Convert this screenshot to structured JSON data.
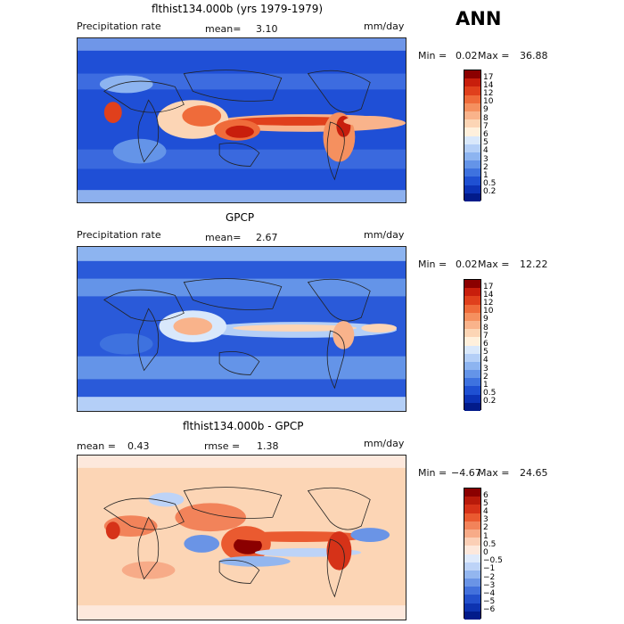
{
  "season": "ANN",
  "panels": [
    {
      "title": "flthist134.000b (yrs 1979-1979)",
      "left_label": "Precipitation rate",
      "stat1_label": "mean=",
      "stat1_value": "3.10",
      "stat2_label": "",
      "stat2_value": "",
      "units": "mm/day",
      "min_label": "Min =",
      "min_value": "0.02",
      "max_label": "Max =",
      "max_value": "36.88",
      "colorbar": {
        "labels": [
          "17",
          "14",
          "12",
          "10",
          "9",
          "8",
          "7",
          "6",
          "5",
          "4",
          "3",
          "2",
          "1",
          "0.5",
          "0.2"
        ],
        "colors": [
          "#8b0000",
          "#c81e0c",
          "#e0401c",
          "#ef6b3a",
          "#f5905f",
          "#f9b38b",
          "#fcd5b5",
          "#fff0dc",
          "#d9e8fb",
          "#b4cff7",
          "#8db4f0",
          "#6494e8",
          "#3e72df",
          "#1f50d2",
          "#0c33b6",
          "#021b8a"
        ]
      }
    },
    {
      "title": "GPCP",
      "left_label": "Precipitation rate",
      "stat1_label": "mean=",
      "stat1_value": "2.67",
      "stat2_label": "",
      "stat2_value": "",
      "units": "mm/day",
      "min_label": "Min =",
      "min_value": "0.02",
      "max_label": "Max =",
      "max_value": "12.22",
      "colorbar": {
        "labels": [
          "17",
          "14",
          "12",
          "10",
          "9",
          "8",
          "7",
          "6",
          "5",
          "4",
          "3",
          "2",
          "1",
          "0.5",
          "0.2"
        ],
        "colors": [
          "#8b0000",
          "#c81e0c",
          "#e0401c",
          "#ef6b3a",
          "#f5905f",
          "#f9b38b",
          "#fcd5b5",
          "#fff0dc",
          "#d9e8fb",
          "#b4cff7",
          "#8db4f0",
          "#6494e8",
          "#3e72df",
          "#1f50d2",
          "#0c33b6",
          "#021b8a"
        ]
      }
    },
    {
      "title": "flthist134.000b - GPCP",
      "left_label": "",
      "stat1_label": "mean =",
      "stat1_value": "0.43",
      "stat2_label": "rmse =",
      "stat2_value": "1.38",
      "units": "mm/day",
      "min_label": "Min =",
      "min_value": "−4.67",
      "max_label": "Max =",
      "max_value": "24.65",
      "colorbar": {
        "labels": [
          "6",
          "5",
          "4",
          "3",
          "2",
          "1",
          "0.5",
          "0",
          "−0.5",
          "−1",
          "−2",
          "−3",
          "−4",
          "−5",
          "−6"
        ],
        "colors": [
          "#8b0000",
          "#b81a0a",
          "#d63218",
          "#ea5a30",
          "#f2835a",
          "#f7ab88",
          "#fbcfb6",
          "#fde8dc",
          "#dfeafb",
          "#bdd3f7",
          "#93b6ef",
          "#6a94e6",
          "#4371dc",
          "#2350cc",
          "#0d33b0",
          "#021b8a"
        ]
      }
    }
  ]
}
